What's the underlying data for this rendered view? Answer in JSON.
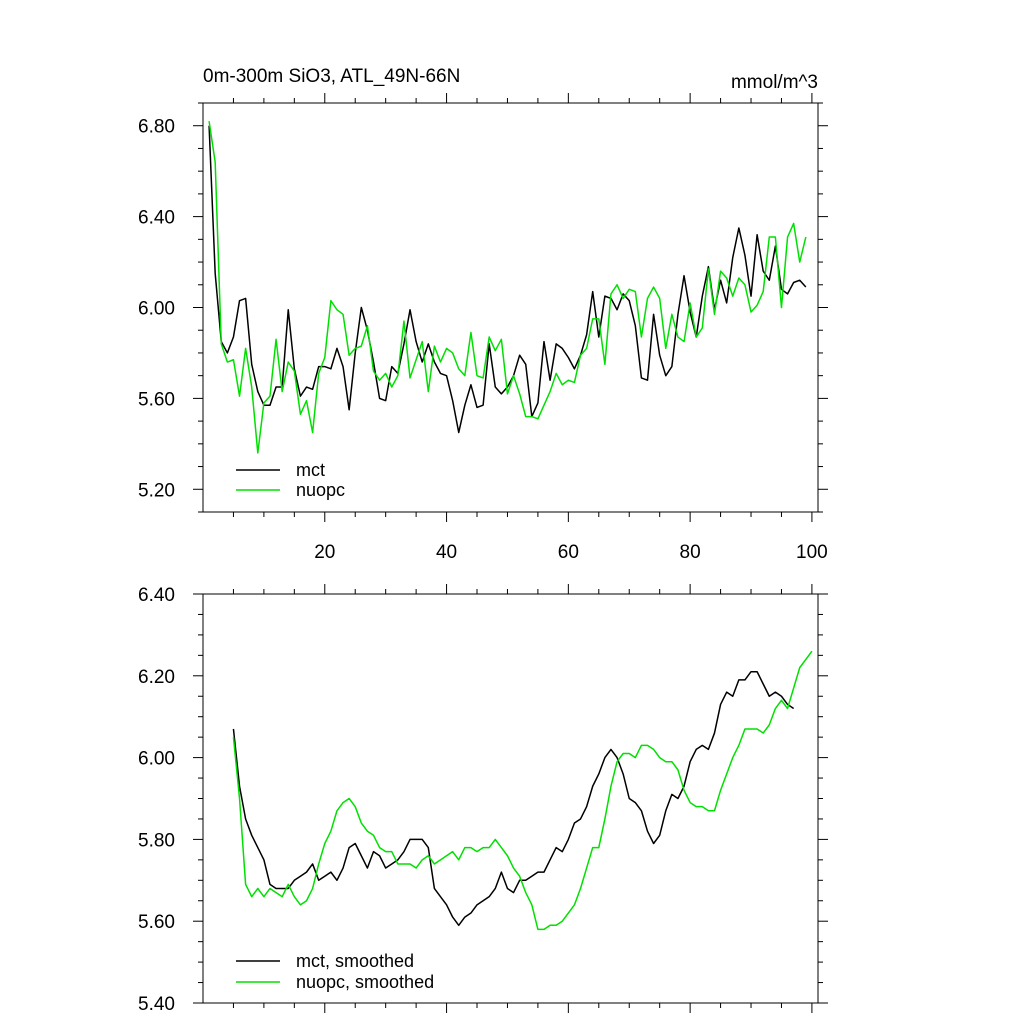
{
  "chart_data": [
    {
      "type": "line",
      "title": "0m-300m SiO3, ATL_49N-66N",
      "units_label": "mmol/m^3",
      "xlim": [
        0,
        101
      ],
      "ylim": [
        5.1,
        6.9
      ],
      "x_ticks": [
        20,
        40,
        60,
        80,
        100
      ],
      "y_ticks": [
        5.2,
        5.6,
        6.0,
        6.4,
        6.8
      ],
      "y_tick_labels": [
        "5.20",
        "5.60",
        "6.00",
        "6.40",
        "6.80"
      ],
      "x_tick_labels": [
        "20",
        "40",
        "60",
        "80",
        "100"
      ],
      "legend_position": "bottom-left",
      "series": [
        {
          "name": "mct",
          "color": "#000000",
          "x_start": 1,
          "values": [
            6.8,
            6.15,
            5.85,
            5.8,
            5.87,
            6.03,
            6.04,
            5.75,
            5.63,
            5.57,
            5.57,
            5.65,
            5.65,
            5.99,
            5.73,
            5.61,
            5.65,
            5.64,
            5.74,
            5.74,
            5.73,
            5.82,
            5.74,
            5.55,
            5.8,
            6.0,
            5.9,
            5.76,
            5.6,
            5.59,
            5.74,
            5.71,
            5.84,
            5.99,
            5.85,
            5.76,
            5.84,
            5.76,
            5.71,
            5.7,
            5.59,
            5.45,
            5.57,
            5.66,
            5.56,
            5.57,
            5.84,
            5.65,
            5.62,
            5.65,
            5.7,
            5.79,
            5.75,
            5.52,
            5.58,
            5.85,
            5.68,
            5.84,
            5.82,
            5.78,
            5.73,
            5.79,
            5.88,
            6.07,
            5.87,
            6.05,
            6.04,
            5.99,
            6.06,
            6.03,
            5.92,
            5.69,
            5.68,
            5.97,
            5.79,
            5.7,
            5.74,
            5.97,
            6.14,
            5.98,
            5.87,
            6.05,
            6.18,
            5.99,
            6.12,
            6.02,
            6.22,
            6.35,
            6.23,
            6.05,
            6.32,
            6.16,
            6.12,
            6.27,
            6.08,
            6.06,
            6.11,
            6.12,
            6.09
          ]
        },
        {
          "name": "nuopc",
          "color": "#00e000",
          "x_start": 1,
          "values": [
            6.82,
            6.64,
            5.84,
            5.76,
            5.77,
            5.61,
            5.82,
            5.65,
            5.36,
            5.58,
            5.61,
            5.86,
            5.63,
            5.76,
            5.72,
            5.53,
            5.59,
            5.45,
            5.71,
            5.78,
            6.03,
            5.99,
            5.97,
            5.79,
            5.82,
            5.83,
            5.92,
            5.72,
            5.68,
            5.71,
            5.65,
            5.7,
            5.94,
            5.69,
            5.77,
            5.85,
            5.63,
            5.83,
            5.76,
            5.82,
            5.8,
            5.73,
            5.7,
            5.89,
            5.7,
            5.69,
            5.87,
            5.81,
            5.86,
            5.62,
            5.7,
            5.62,
            5.52,
            5.52,
            5.51,
            5.57,
            5.63,
            5.71,
            5.66,
            5.68,
            5.67,
            5.79,
            5.82,
            5.95,
            5.95,
            5.75,
            6.06,
            6.1,
            6.04,
            6.08,
            6.07,
            5.87,
            6.04,
            6.09,
            6.04,
            5.82,
            5.97,
            5.87,
            5.85,
            6.02,
            5.87,
            5.91,
            6.17,
            5.97,
            6.16,
            6.13,
            6.05,
            6.13,
            6.1,
            5.98,
            6.01,
            6.07,
            6.31,
            6.31,
            6.0,
            6.31,
            6.37,
            6.2,
            6.31
          ]
        }
      ]
    },
    {
      "type": "line",
      "xlim": [
        0,
        101
      ],
      "ylim": [
        5.4,
        6.4
      ],
      "x_ticks": [
        20,
        40,
        60,
        80,
        100
      ],
      "y_ticks": [
        5.4,
        5.6,
        5.8,
        6.0,
        6.2,
        6.4
      ],
      "y_tick_labels": [
        "5.40",
        "5.60",
        "5.80",
        "6.00",
        "6.20",
        "6.40"
      ],
      "legend_position": "bottom-left",
      "series": [
        {
          "name": "mct, smoothed",
          "color": "#000000",
          "x_start": 5,
          "values": [
            6.07,
            5.93,
            5.85,
            5.81,
            5.78,
            5.75,
            5.69,
            5.68,
            5.68,
            5.68,
            5.7,
            5.71,
            5.72,
            5.74,
            5.7,
            5.71,
            5.72,
            5.7,
            5.73,
            5.78,
            5.79,
            5.76,
            5.73,
            5.77,
            5.76,
            5.73,
            5.74,
            5.75,
            5.77,
            5.8,
            5.8,
            5.8,
            5.78,
            5.68,
            5.66,
            5.64,
            5.61,
            5.59,
            5.61,
            5.62,
            5.64,
            5.65,
            5.66,
            5.68,
            5.72,
            5.68,
            5.67,
            5.7,
            5.7,
            5.71,
            5.72,
            5.72,
            5.75,
            5.78,
            5.77,
            5.8,
            5.84,
            5.85,
            5.88,
            5.93,
            5.96,
            6.0,
            6.02,
            6.0,
            5.96,
            5.9,
            5.89,
            5.87,
            5.82,
            5.79,
            5.81,
            5.87,
            5.91,
            5.9,
            5.93,
            5.99,
            6.02,
            6.03,
            6.02,
            6.06,
            6.13,
            6.16,
            6.15,
            6.19,
            6.19,
            6.21,
            6.21,
            6.18,
            6.15,
            6.16,
            6.15,
            6.13,
            6.12
          ]
        },
        {
          "name": "nuopc, smoothed",
          "color": "#00e000",
          "x_start": 5,
          "values": [
            6.05,
            5.9,
            5.69,
            5.66,
            5.68,
            5.66,
            5.68,
            5.67,
            5.66,
            5.69,
            5.66,
            5.64,
            5.65,
            5.68,
            5.74,
            5.79,
            5.82,
            5.87,
            5.89,
            5.9,
            5.88,
            5.84,
            5.82,
            5.81,
            5.78,
            5.77,
            5.77,
            5.74,
            5.74,
            5.74,
            5.73,
            5.75,
            5.76,
            5.74,
            5.75,
            5.76,
            5.77,
            5.75,
            5.78,
            5.78,
            5.77,
            5.78,
            5.78,
            5.8,
            5.78,
            5.76,
            5.73,
            5.71,
            5.67,
            5.64,
            5.58,
            5.58,
            5.59,
            5.59,
            5.6,
            5.62,
            5.64,
            5.68,
            5.73,
            5.78,
            5.78,
            5.85,
            5.93,
            5.99,
            6.01,
            6.01,
            6.0,
            6.03,
            6.03,
            6.02,
            6.0,
            5.99,
            5.99,
            5.97,
            5.92,
            5.89,
            5.88,
            5.88,
            5.87,
            5.87,
            5.92,
            5.96,
            6.0,
            6.03,
            6.07,
            6.07,
            6.07,
            6.06,
            6.08,
            6.12,
            6.14,
            6.12,
            6.17,
            6.22,
            6.24,
            6.26
          ]
        }
      ]
    }
  ]
}
